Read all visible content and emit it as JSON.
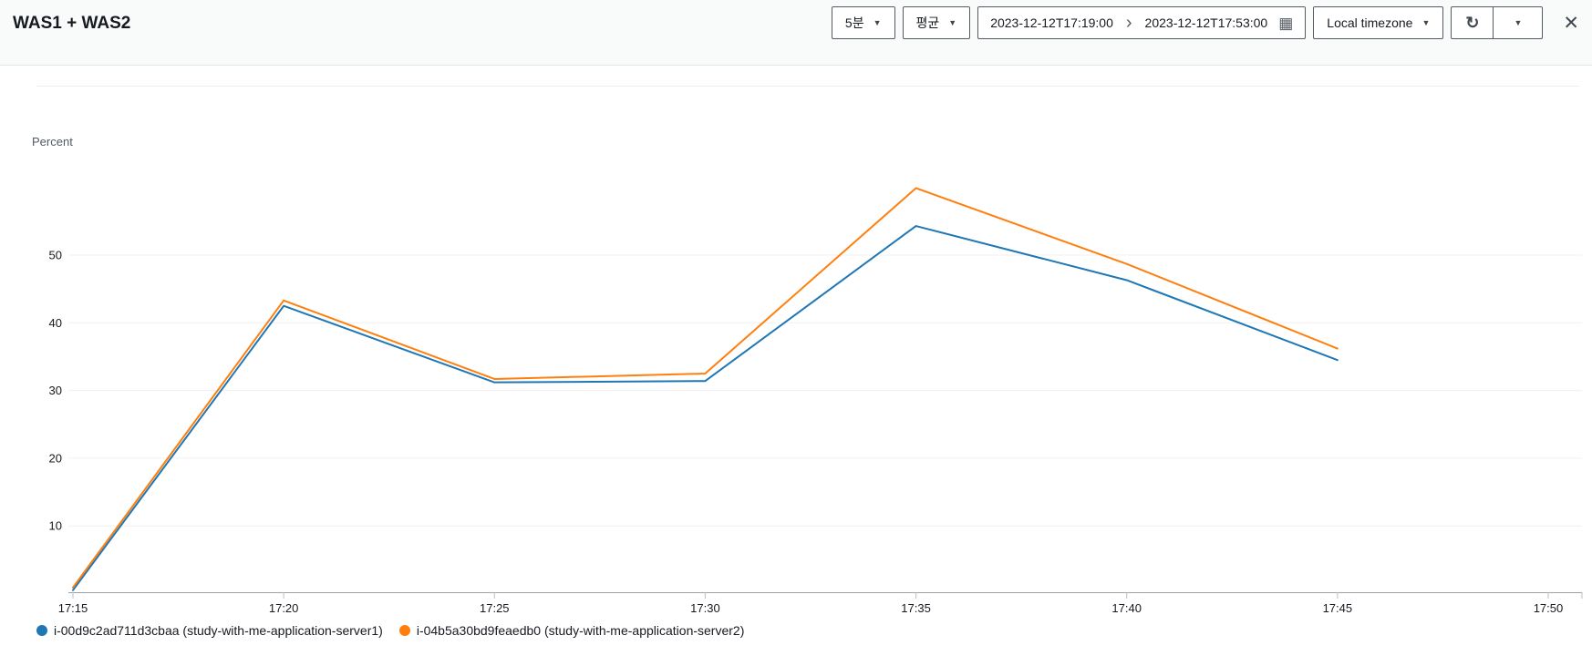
{
  "header": {
    "title": "WAS1 + WAS2",
    "period_label": "5분",
    "statistic_label": "평균",
    "date_start": "2023-12-12T17:19:00",
    "date_end": "2023-12-12T17:53:00",
    "timezone_label": "Local timezone",
    "icons": {
      "caret": "▼",
      "chevron_right": "›",
      "calendar": "▦",
      "refresh": "↻",
      "close": "✕"
    }
  },
  "chart_data": {
    "type": "line",
    "title": "WAS1 + WAS2",
    "xlabel": "",
    "ylabel": "Percent",
    "unit": "Percent",
    "x": [
      "17:15",
      "17:20",
      "17:25",
      "17:30",
      "17:35",
      "17:40",
      "17:45"
    ],
    "x_axis_ticks": [
      "17:15",
      "17:20",
      "17:25",
      "17:30",
      "17:35",
      "17:40",
      "17:45",
      "17:50"
    ],
    "y_ticks": [
      10,
      20,
      30,
      40,
      50
    ],
    "ylim": [
      0,
      65
    ],
    "grid": true,
    "legend_position": "bottom",
    "series": [
      {
        "name": "i-00d9c2ad711d3cbaa (study-with-me-application-server1)",
        "color": "#1f77b4",
        "values": [
          0.5,
          42.5,
          31.2,
          31.4,
          54.3,
          46.3,
          34.5
        ]
      },
      {
        "name": "i-04b5a30bd9feaedb0 (study-with-me-application-server2)",
        "color": "#ff7f0e",
        "values": [
          0.9,
          43.3,
          31.7,
          32.5,
          59.9,
          48.7,
          36.2
        ]
      }
    ]
  }
}
